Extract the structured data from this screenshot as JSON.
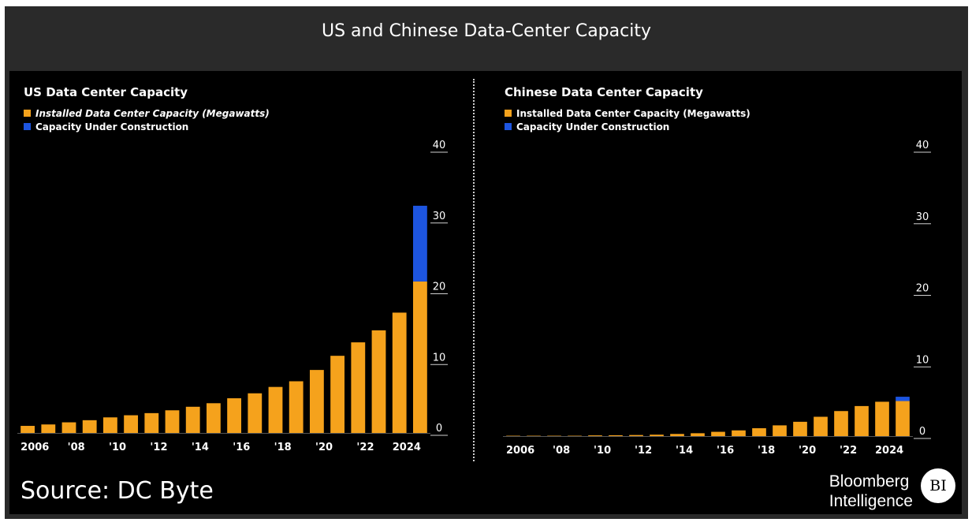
{
  "page_title": "US and Chinese Data-Center Capacity",
  "source": "Source: DC Byte",
  "brand": {
    "line1": "Bloomberg",
    "line2": "Intelligence",
    "logo": "BI"
  },
  "colors": {
    "installed": "#f5a21c",
    "construction": "#1d55e0",
    "background": "#000000"
  },
  "chart_data": [
    {
      "type": "bar",
      "title": "US Data Center Capacity",
      "stacked": true,
      "years": [
        2006,
        2007,
        2008,
        2009,
        2010,
        2011,
        2012,
        2013,
        2014,
        2015,
        2016,
        2017,
        2018,
        2019,
        2020,
        2021,
        2022,
        2023,
        2024,
        2025
      ],
      "xtick_labels": [
        "2006",
        "'08",
        "'10",
        "'12",
        "'14",
        "'16",
        "'18",
        "'20",
        "'22",
        "2024"
      ],
      "series": [
        {
          "name": "Installed Data Center Capacity (Megawatts)",
          "color": "#f5a21c",
          "values": [
            1.0,
            1.2,
            1.5,
            1.8,
            2.2,
            2.5,
            2.8,
            3.2,
            3.7,
            4.2,
            4.9,
            5.6,
            6.5,
            7.3,
            8.9,
            10.9,
            12.8,
            14.5,
            17.0,
            21.4
          ]
        },
        {
          "name": "Capacity Under Construction",
          "color": "#1d55e0",
          "values": [
            0,
            0,
            0,
            0,
            0,
            0,
            0,
            0,
            0,
            0,
            0,
            0,
            0,
            0,
            0,
            0,
            0,
            0,
            0,
            10.7
          ]
        }
      ],
      "ylim": [
        0,
        40
      ],
      "yticks": [
        "0",
        "10",
        "20",
        "30",
        "40"
      ],
      "y_axis_side": "right"
    },
    {
      "type": "bar",
      "title": "Chinese Data Center Capacity",
      "stacked": true,
      "years": [
        2006,
        2007,
        2008,
        2009,
        2010,
        2011,
        2012,
        2013,
        2014,
        2015,
        2016,
        2017,
        2018,
        2019,
        2020,
        2021,
        2022,
        2023,
        2024,
        2025
      ],
      "xtick_labels": [
        "2006",
        "'08",
        "'10",
        "'12",
        "'14",
        "'16",
        "'18",
        "'20",
        "'22",
        "2024"
      ],
      "series": [
        {
          "name": "Installed Data Center Capacity (Megawatts)",
          "color": "#f5a21c",
          "values": [
            0.05,
            0.05,
            0.05,
            0.05,
            0.1,
            0.12,
            0.15,
            0.2,
            0.3,
            0.4,
            0.6,
            0.8,
            1.1,
            1.5,
            2.0,
            2.7,
            3.5,
            4.2,
            4.8,
            4.9
          ]
        },
        {
          "name": "Capacity Under Construction",
          "color": "#1d55e0",
          "values": [
            0,
            0,
            0,
            0,
            0,
            0,
            0,
            0,
            0,
            0,
            0,
            0,
            0,
            0,
            0,
            0,
            0,
            0,
            0,
            0.6
          ]
        }
      ],
      "ylim": [
        0,
        40
      ],
      "yticks": [
        "0",
        "10",
        "20",
        "30",
        "40"
      ],
      "y_axis_side": "right"
    }
  ]
}
